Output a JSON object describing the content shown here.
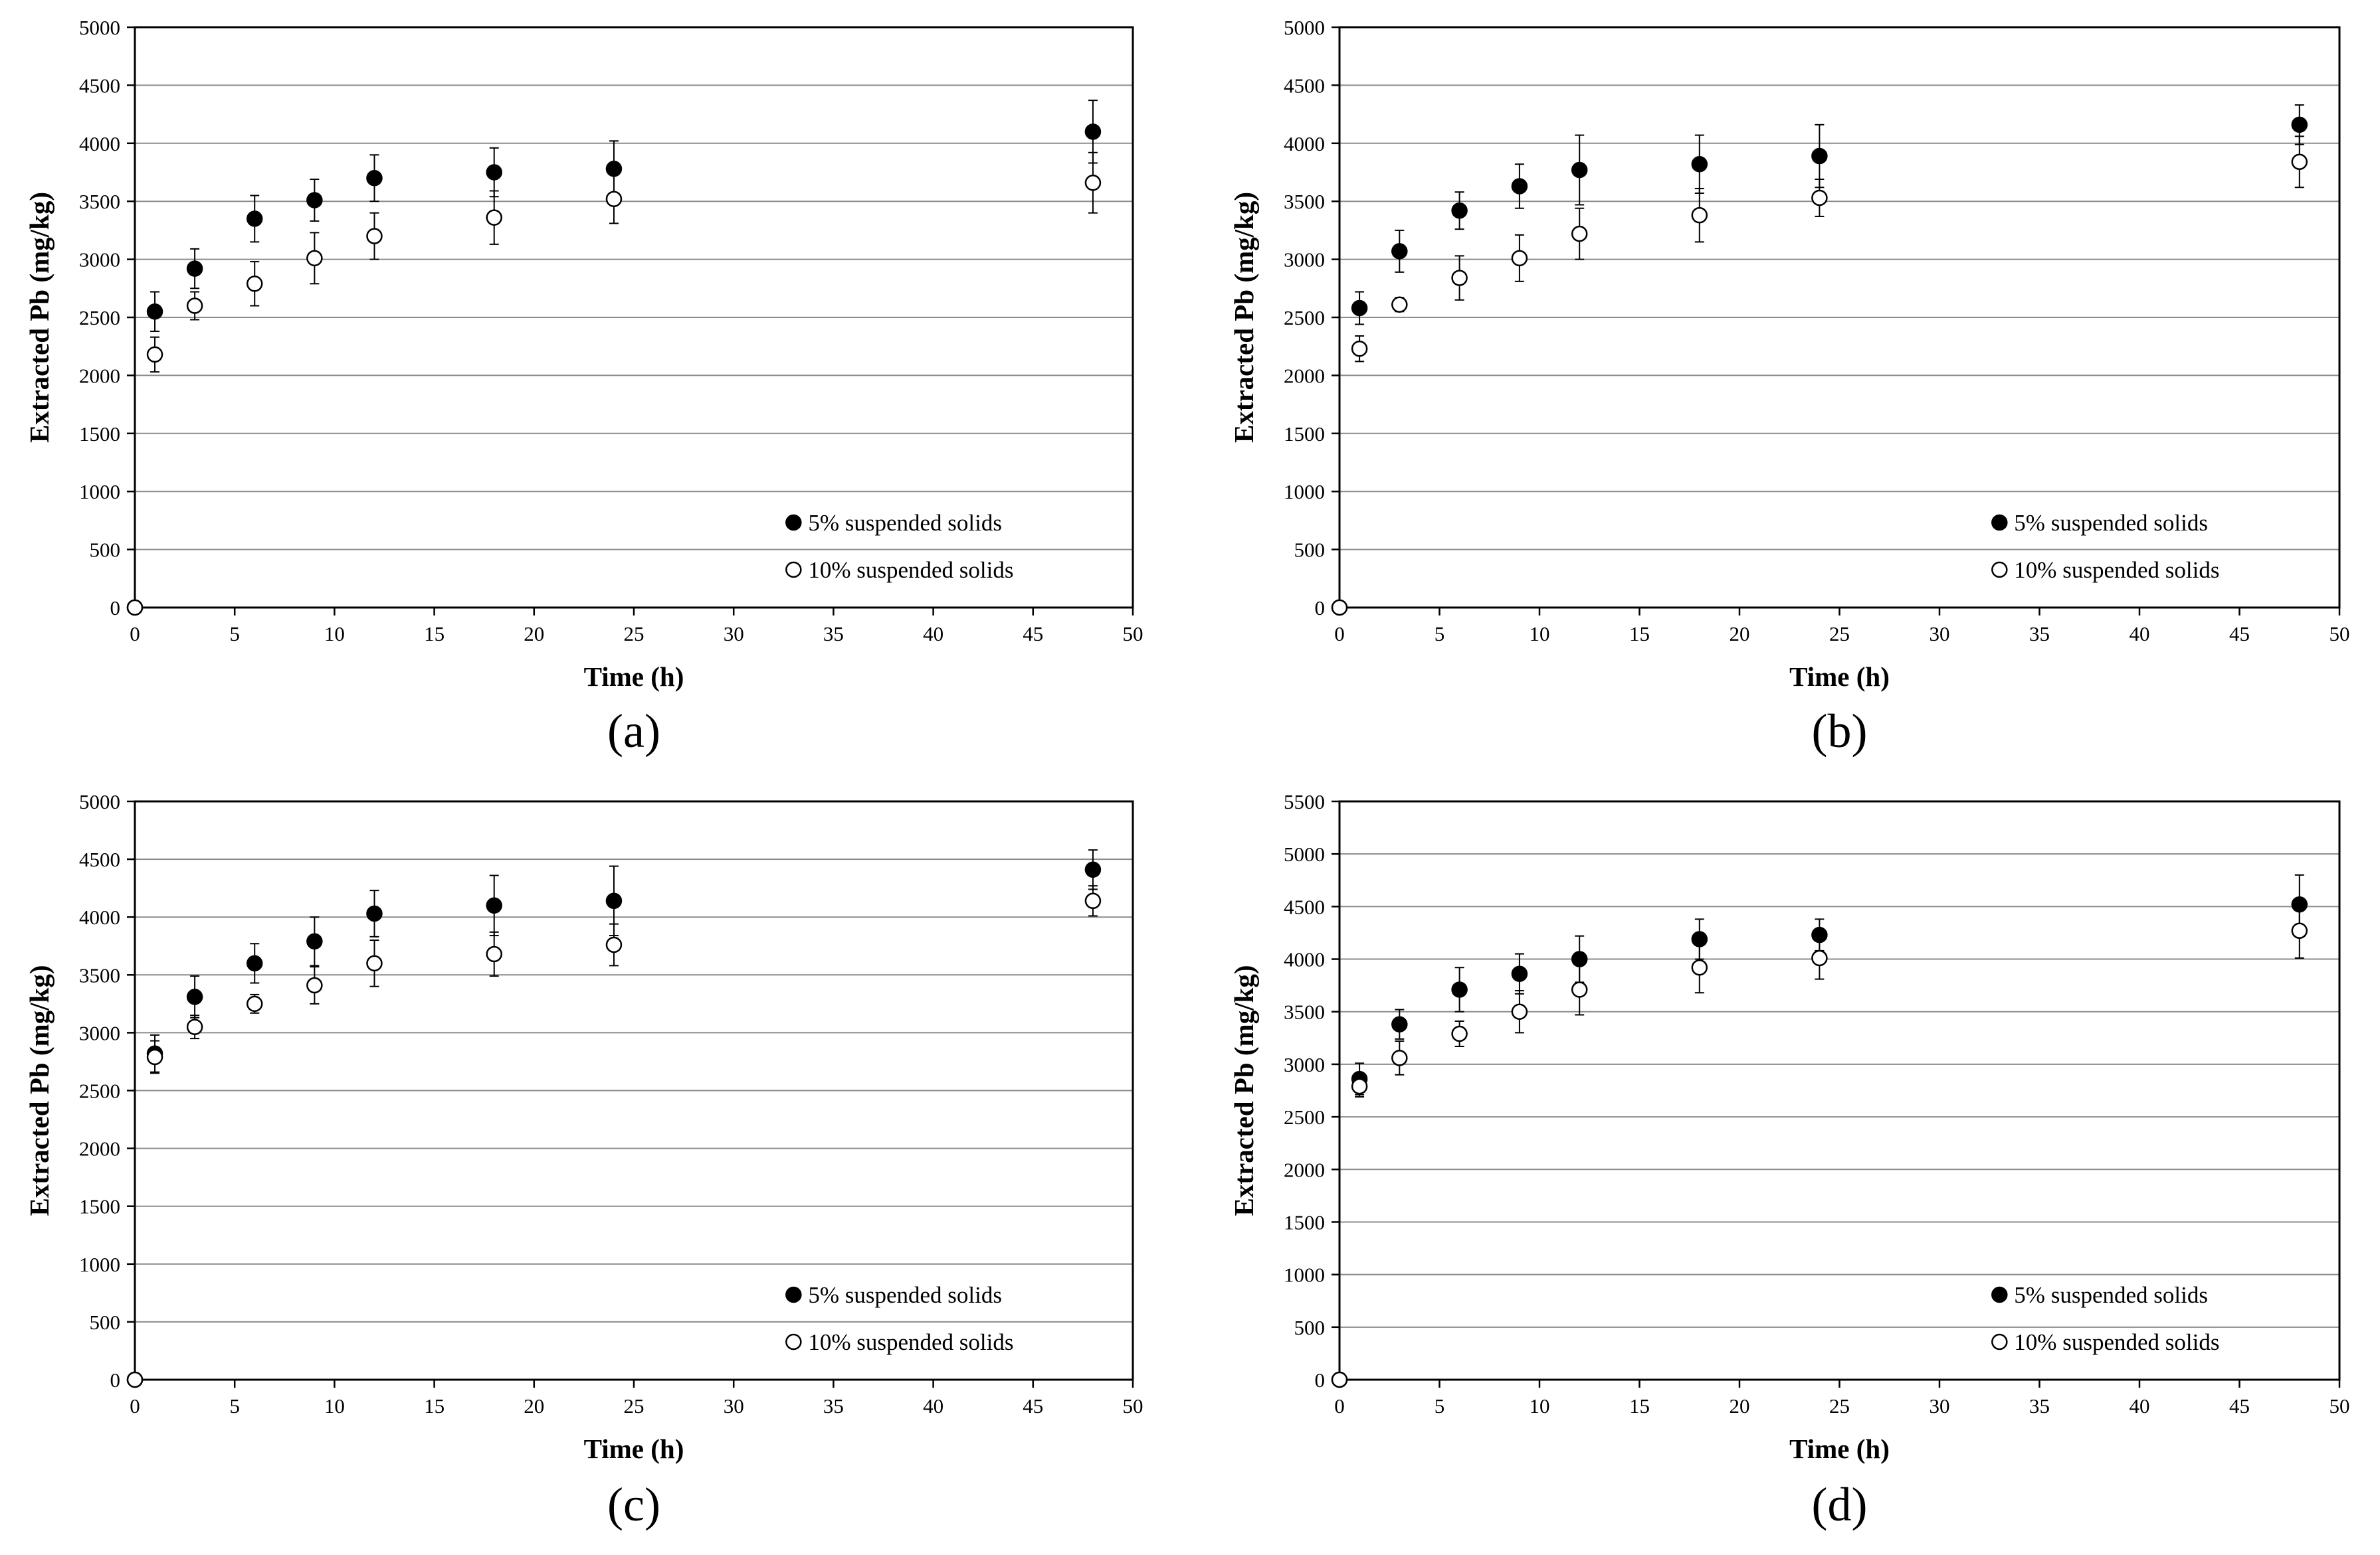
{
  "chart_data": [
    {
      "panel": "(a)",
      "type": "scatter",
      "xlabel": "Time (h)",
      "ylabel": "Extracted Pb (mg/kg)",
      "xlim": [
        0,
        50
      ],
      "ylim": [
        0,
        5000
      ],
      "xticks": [
        0,
        5,
        10,
        15,
        20,
        25,
        30,
        35,
        40,
        45,
        50
      ],
      "yticks": [
        0,
        500,
        1000,
        1500,
        2000,
        2500,
        3000,
        3500,
        4000,
        4500,
        5000
      ],
      "legend_position": "bottom-right",
      "series": [
        {
          "name": "5% suspended solids",
          "marker": "filled-circle",
          "x": [
            0,
            1,
            3,
            6,
            9,
            12,
            18,
            24,
            48
          ],
          "y": [
            0,
            2550,
            2920,
            3350,
            3510,
            3700,
            3750,
            3780,
            4100
          ],
          "err": [
            0,
            170,
            170,
            200,
            180,
            200,
            210,
            240,
            270
          ]
        },
        {
          "name": "10% suspended solids",
          "marker": "open-circle",
          "x": [
            0,
            1,
            3,
            6,
            9,
            12,
            18,
            24,
            48
          ],
          "y": [
            0,
            2180,
            2600,
            2790,
            3010,
            3200,
            3360,
            3520,
            3660
          ],
          "err": [
            0,
            150,
            120,
            190,
            220,
            200,
            230,
            210,
            260
          ]
        }
      ]
    },
    {
      "panel": "(b)",
      "type": "scatter",
      "xlabel": "Time (h)",
      "ylabel": "Extracted Pb (mg/kg)",
      "xlim": [
        0,
        50
      ],
      "ylim": [
        0,
        5000
      ],
      "xticks": [
        0,
        5,
        10,
        15,
        20,
        25,
        30,
        35,
        40,
        45,
        50
      ],
      "yticks": [
        0,
        500,
        1000,
        1500,
        2000,
        2500,
        3000,
        3500,
        4000,
        4500,
        5000
      ],
      "legend_position": "bottom-right",
      "series": [
        {
          "name": "5% suspended solids",
          "marker": "filled-circle",
          "x": [
            0,
            1,
            3,
            6,
            9,
            12,
            18,
            24,
            48
          ],
          "y": [
            0,
            2580,
            3070,
            3420,
            3630,
            3770,
            3820,
            3890,
            4160
          ],
          "err": [
            0,
            140,
            180,
            160,
            190,
            300,
            250,
            270,
            170
          ]
        },
        {
          "name": "10% suspended solids",
          "marker": "open-circle",
          "x": [
            0,
            1,
            3,
            6,
            9,
            12,
            18,
            24,
            48
          ],
          "y": [
            0,
            2230,
            2610,
            2840,
            3010,
            3220,
            3380,
            3530,
            3840
          ],
          "err": [
            0,
            110,
            60,
            190,
            200,
            220,
            230,
            160,
            220
          ]
        }
      ]
    },
    {
      "panel": "(c)",
      "type": "scatter",
      "xlabel": "Time (h)",
      "ylabel": "Extracted Pb (mg/kg)",
      "xlim": [
        0,
        50
      ],
      "ylim": [
        0,
        5000
      ],
      "xticks": [
        0,
        5,
        10,
        15,
        20,
        25,
        30,
        35,
        40,
        45,
        50
      ],
      "yticks": [
        0,
        500,
        1000,
        1500,
        2000,
        2500,
        3000,
        3500,
        4000,
        4500,
        5000
      ],
      "legend_position": "bottom-right",
      "series": [
        {
          "name": "5% suspended solids",
          "marker": "filled-circle",
          "x": [
            0,
            1,
            3,
            6,
            9,
            12,
            18,
            24,
            48
          ],
          "y": [
            0,
            2820,
            3310,
            3600,
            3790,
            4030,
            4100,
            4140,
            4410
          ],
          "err": [
            0,
            160,
            180,
            170,
            210,
            200,
            260,
            300,
            170
          ]
        },
        {
          "name": "10% suspended solids",
          "marker": "open-circle",
          "x": [
            0,
            1,
            3,
            6,
            9,
            12,
            18,
            24,
            48
          ],
          "y": [
            0,
            2790,
            3050,
            3250,
            3410,
            3600,
            3680,
            3760,
            4140
          ],
          "err": [
            0,
            140,
            100,
            80,
            160,
            200,
            190,
            180,
            130
          ]
        }
      ]
    },
    {
      "panel": "(d)",
      "type": "scatter",
      "xlabel": "Time (h)",
      "ylabel": "Extracted Pb (mg/kg)",
      "xlim": [
        0,
        50
      ],
      "ylim": [
        0,
        5500
      ],
      "xticks": [
        0,
        5,
        10,
        15,
        20,
        25,
        30,
        35,
        40,
        45,
        50
      ],
      "yticks": [
        0,
        500,
        1000,
        1500,
        2000,
        2500,
        3000,
        3500,
        4000,
        4500,
        5000,
        5500
      ],
      "legend_position": "bottom-right",
      "series": [
        {
          "name": "5% suspended solids",
          "marker": "filled-circle",
          "x": [
            0,
            1,
            3,
            6,
            9,
            12,
            18,
            24,
            48
          ],
          "y": [
            0,
            2860,
            3380,
            3710,
            3860,
            4000,
            4190,
            4230,
            4520
          ],
          "err": [
            0,
            150,
            140,
            210,
            190,
            220,
            190,
            150,
            280
          ]
        },
        {
          "name": "10% suspended solids",
          "marker": "open-circle",
          "x": [
            0,
            1,
            3,
            6,
            9,
            12,
            18,
            24,
            48
          ],
          "y": [
            0,
            2790,
            3060,
            3290,
            3500,
            3710,
            3920,
            4010,
            4270
          ],
          "err": [
            0,
            100,
            160,
            120,
            200,
            240,
            240,
            200,
            260
          ]
        }
      ]
    }
  ]
}
